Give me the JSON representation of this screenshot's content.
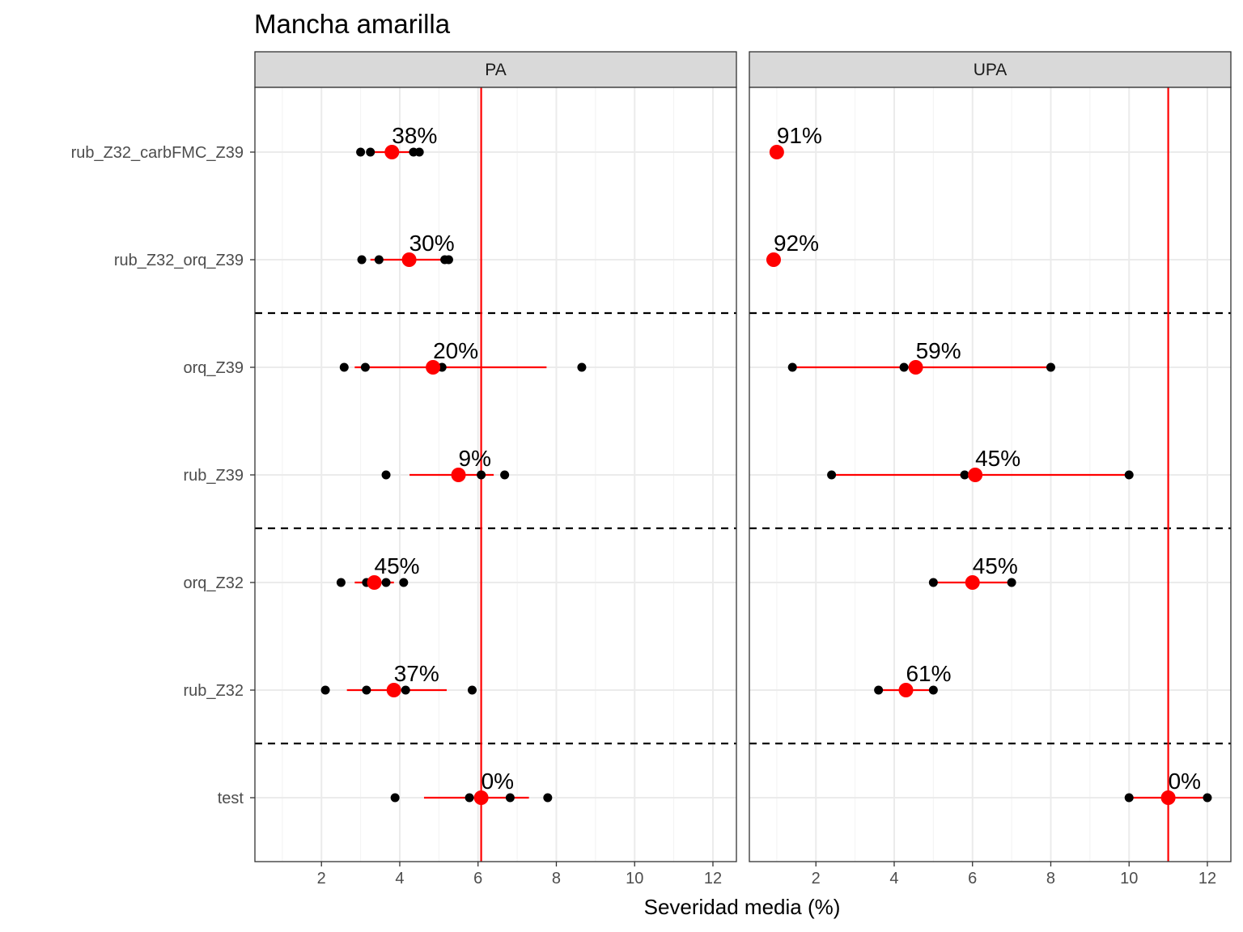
{
  "chart_data": {
    "type": "scatter",
    "title": "Mancha amarilla",
    "xlabel": "Severidad media (%)",
    "ylabel": "",
    "xlim": [
      0.3,
      12.6
    ],
    "x_ticks": [
      2,
      4,
      6,
      8,
      10,
      12
    ],
    "grid": true,
    "categories": [
      "rub_Z32_carbFMC_Z39",
      "rub_Z32_orq_Z39",
      "orq_Z39",
      "rub_Z39",
      "orq_Z32",
      "rub_Z32",
      "test"
    ],
    "dashed_separators_after": [
      "rub_Z32_orq_Z39",
      "rub_Z39",
      "rub_Z32"
    ],
    "colors": {
      "mean": "#ff0000",
      "points": "#000000",
      "reference_line": "#ff0000",
      "strip": "#d9d9d9"
    },
    "panels": [
      {
        "name": "PA",
        "reference_line": 6.08,
        "rows": [
          {
            "category": "rub_Z32_carbFMC_Z39",
            "points": [
              3.0,
              3.25,
              4.35,
              4.5
            ],
            "mean": 3.8,
            "ci": [
              3.2,
              4.4
            ],
            "label": "38%"
          },
          {
            "category": "rub_Z32_orq_Z39",
            "points": [
              3.03,
              3.47,
              5.15,
              5.25
            ],
            "mean": 4.24,
            "ci": [
              3.25,
              5.25
            ],
            "label": "30%"
          },
          {
            "category": "orq_Z39",
            "points": [
              2.58,
              3.12,
              5.08,
              8.65
            ],
            "mean": 4.85,
            "ci": [
              2.85,
              7.75
            ],
            "label": "20%"
          },
          {
            "category": "rub_Z39",
            "points": [
              3.65,
              6.08,
              6.68
            ],
            "mean": 5.5,
            "ci": [
              4.25,
              6.4
            ],
            "label": "9%"
          },
          {
            "category": "orq_Z32",
            "points": [
              2.5,
              3.15,
              3.65,
              4.1
            ],
            "mean": 3.35,
            "ci": [
              2.85,
              3.85
            ],
            "label": "45%"
          },
          {
            "category": "rub_Z32",
            "points": [
              2.1,
              3.15,
              4.15,
              5.85
            ],
            "mean": 3.85,
            "ci": [
              2.65,
              5.2
            ],
            "label": "37%"
          },
          {
            "category": "test",
            "points": [
              3.88,
              5.78,
              6.82,
              7.78
            ],
            "mean": 6.08,
            "ci": [
              4.62,
              7.3
            ],
            "label": "0%"
          }
        ]
      },
      {
        "name": "UPA",
        "reference_line": 11.0,
        "rows": [
          {
            "category": "rub_Z32_carbFMC_Z39",
            "points": [
              1.0
            ],
            "mean": 1.0,
            "ci": [
              1.0,
              1.0
            ],
            "label": "91%"
          },
          {
            "category": "rub_Z32_orq_Z39",
            "points": [
              0.85,
              0.95
            ],
            "mean": 0.92,
            "ci": [
              0.85,
              0.98
            ],
            "label": "92%"
          },
          {
            "category": "orq_Z39",
            "points": [
              1.4,
              4.25,
              8.0
            ],
            "mean": 4.55,
            "ci": [
              1.4,
              8.0
            ],
            "label": "59%"
          },
          {
            "category": "rub_Z39",
            "points": [
              2.4,
              5.8,
              10.0
            ],
            "mean": 6.07,
            "ci": [
              2.4,
              10.0
            ],
            "label": "45%"
          },
          {
            "category": "orq_Z32",
            "points": [
              5.0,
              7.0
            ],
            "mean": 6.0,
            "ci": [
              5.0,
              7.0
            ],
            "label": "45%"
          },
          {
            "category": "rub_Z32",
            "points": [
              3.6,
              5.0
            ],
            "mean": 4.3,
            "ci": [
              3.6,
              5.0
            ],
            "label": "61%"
          },
          {
            "category": "test",
            "points": [
              10.0,
              12.0
            ],
            "mean": 11.0,
            "ci": [
              10.0,
              12.0
            ],
            "label": "0%"
          }
        ]
      }
    ]
  }
}
